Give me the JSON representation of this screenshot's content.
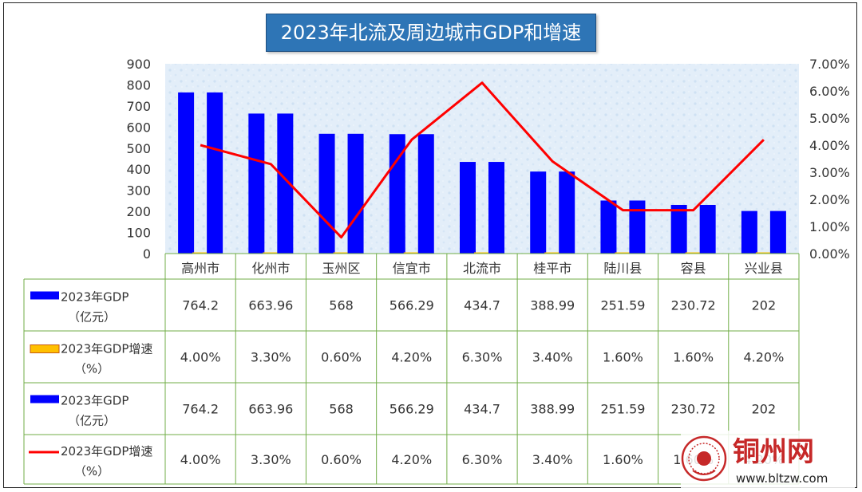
{
  "chart_data": {
    "type": "bar+line",
    "title": "2023年北流及周边城市GDP和增速",
    "categories": [
      "高州市",
      "化州市",
      "玉州区",
      "信宜市",
      "北流市",
      "桂平市",
      "陆川县",
      "容县",
      "兴业县"
    ],
    "y_left": {
      "ticks": [
        "900",
        "800",
        "700",
        "600",
        "500",
        "400",
        "300",
        "200",
        "100",
        "0"
      ],
      "ylim": [
        0,
        900
      ]
    },
    "y_right": {
      "ticks": [
        "7.00%",
        "6.00%",
        "5.00%",
        "4.00%",
        "3.00%",
        "2.00%",
        "1.00%",
        "0.00%"
      ],
      "ylim": [
        0,
        7
      ]
    },
    "series": [
      {
        "name": "2023年GDP（亿元）",
        "type": "bar",
        "axis": "left",
        "color": "#0000ff",
        "values": [
          764.2,
          663.96,
          568,
          566.29,
          434.7,
          388.99,
          251.59,
          230.72,
          202
        ],
        "labels": [
          "764.2",
          "663.96",
          "568",
          "566.29",
          "434.7",
          "388.99",
          "251.59",
          "230.72",
          "202"
        ]
      },
      {
        "name": "2023年GDP增速（%）",
        "type": "bar",
        "axis": "right",
        "color": "#ffc000",
        "values": [
          4.0,
          3.3,
          0.6,
          4.2,
          6.3,
          3.4,
          1.6,
          1.6,
          4.2
        ],
        "labels": [
          "4.00%",
          "3.30%",
          "0.60%",
          "4.20%",
          "6.30%",
          "3.40%",
          "1.60%",
          "1.60%",
          "4.20%"
        ]
      },
      {
        "name": "2023年GDP（亿元）",
        "type": "bar",
        "axis": "left",
        "color": "#0000ff",
        "values": [
          764.2,
          663.96,
          568,
          566.29,
          434.7,
          388.99,
          251.59,
          230.72,
          202
        ],
        "labels": [
          "764.2",
          "663.96",
          "568",
          "566.29",
          "434.7",
          "388.99",
          "251.59",
          "230.72",
          "202"
        ]
      },
      {
        "name": "2023年GDP增速（%）",
        "type": "line",
        "axis": "right",
        "color": "#ff0000",
        "values": [
          4.0,
          3.3,
          0.6,
          4.2,
          6.3,
          3.4,
          1.6,
          1.6,
          4.2
        ],
        "labels": [
          "4.00%",
          "3.30%",
          "0.60%",
          "4.20%",
          "6.30%",
          "3.40%",
          "1.60%",
          "1.60%",
          "4.20%"
        ]
      }
    ],
    "legend_rows": [
      {
        "line1": "2023年GDP",
        "line2": "（亿元）"
      },
      {
        "line1": "2023年GDP增速",
        "line2": "（%）"
      },
      {
        "line1": "2023年GDP",
        "line2": "（亿元）"
      },
      {
        "line1": "2023年GDP增速",
        "line2": "（%）"
      }
    ],
    "data_table": true,
    "legend": "data-table"
  },
  "watermark": {
    "text": "铜州网",
    "url": "www.bltzw.com"
  }
}
